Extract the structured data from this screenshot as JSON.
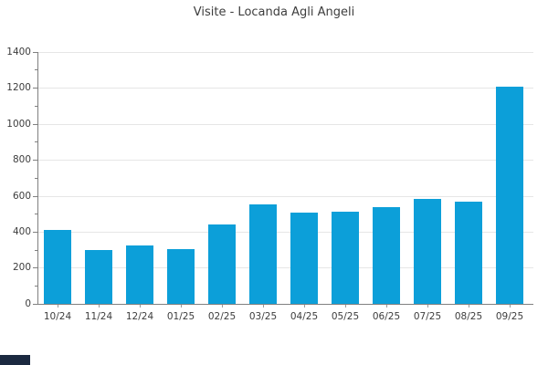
{
  "title": "Visite - Locanda Agli Angeli",
  "chart_data": {
    "type": "bar",
    "title": "Visite - Locanda Agli Angeli",
    "categories": [
      "10/24",
      "11/24",
      "12/24",
      "01/25",
      "02/25",
      "03/25",
      "04/25",
      "05/25",
      "06/25",
      "07/25",
      "08/25",
      "09/25"
    ],
    "values": [
      410,
      300,
      325,
      305,
      440,
      550,
      505,
      510,
      535,
      580,
      565,
      1205
    ],
    "xlabel": "",
    "ylabel": "",
    "ylim": [
      0,
      1400
    ],
    "ytick_step": 200,
    "ytick_minor_step": 100,
    "ytick_labels": [
      "0",
      "200",
      "400",
      "600",
      "800",
      "1000",
      "1200",
      "1400"
    ],
    "grid": "horizontal-major",
    "legend": "none"
  },
  "colors": {
    "bar": "#0c9fd9",
    "grid": "#e6e6e6",
    "axis": "#808080",
    "text": "#3d3d3d",
    "background": "#ffffff",
    "corner_artifact": "#1b2940"
  }
}
